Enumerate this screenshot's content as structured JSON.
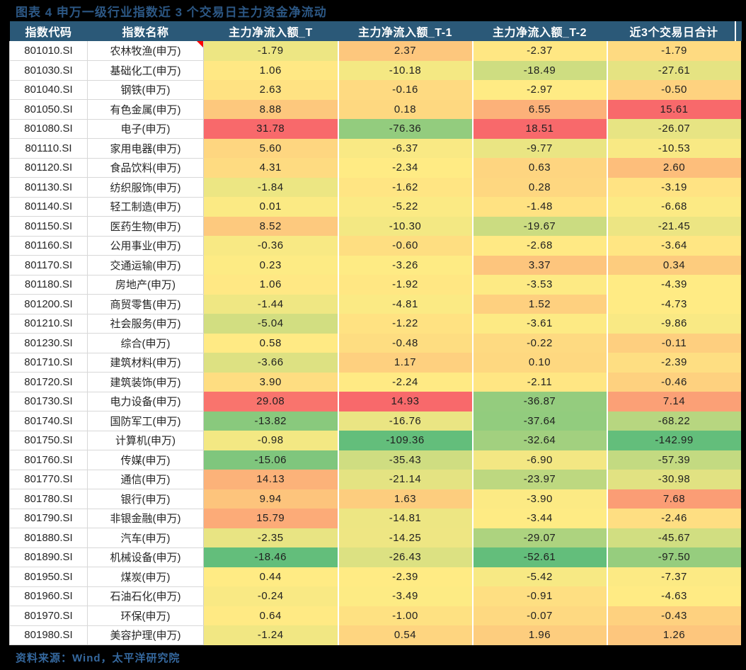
{
  "title": "图表 4 申万一级行业指数近 3 个交易日主力资金净流动",
  "source_note": "资料来源：Wind，太平洋研究院",
  "colors": {
    "page_bg": "#000000",
    "title_text": "#2C5784",
    "footer_text": "#35689E",
    "header_bg": "#2B5978",
    "header_text": "#FFFFFF",
    "scale_low_green": "#63BE7B",
    "scale_mid_yellow": "#FFEB84",
    "scale_high_red": "#F8696B",
    "comment_marker": "#FF0000"
  },
  "chart_data": {
    "type": "table",
    "title": "图表 4 申万一级行业指数近 3 个交易日主力资金净流动",
    "color_scale": "per-column 3-color scale: min=green #63BE7B, median=yellow #FFEB84, max=red #F8696B",
    "headers": [
      "指数代码",
      "指数名称",
      "主力净流入额_T",
      "主力净流入额_T-1",
      "主力净流入额_T-2",
      "近3个交易日合计"
    ]
  },
  "table": {
    "headers": [
      "指数代码",
      "指数名称",
      "主力净流入额_T",
      "主力净流入额_T-1",
      "主力净流入额_T-2",
      "近3个交易日合计"
    ],
    "rows": [
      {
        "code": "801010.SI",
        "name": "农林牧渔(申万)",
        "t": "-1.79",
        "t1": "2.37",
        "t2": "-2.37",
        "sum": "-1.79",
        "comment_marker": true
      },
      {
        "code": "801030.SI",
        "name": "基础化工(申万)",
        "t": "1.06",
        "t1": "-10.18",
        "t2": "-18.49",
        "sum": "-27.61"
      },
      {
        "code": "801040.SI",
        "name": "钢铁(申万)",
        "t": "2.63",
        "t1": "-0.16",
        "t2": "-2.97",
        "sum": "-0.50"
      },
      {
        "code": "801050.SI",
        "name": "有色金属(申万)",
        "t": "8.88",
        "t1": "0.18",
        "t2": "6.55",
        "sum": "15.61"
      },
      {
        "code": "801080.SI",
        "name": "电子(申万)",
        "t": "31.78",
        "t1": "-76.36",
        "t2": "18.51",
        "sum": "-26.07"
      },
      {
        "code": "801110.SI",
        "name": "家用电器(申万)",
        "t": "5.60",
        "t1": "-6.37",
        "t2": "-9.77",
        "sum": "-10.53"
      },
      {
        "code": "801120.SI",
        "name": "食品饮料(申万)",
        "t": "4.31",
        "t1": "-2.34",
        "t2": "0.63",
        "sum": "2.60"
      },
      {
        "code": "801130.SI",
        "name": "纺织服饰(申万)",
        "t": "-1.84",
        "t1": "-1.62",
        "t2": "0.28",
        "sum": "-3.19"
      },
      {
        "code": "801140.SI",
        "name": "轻工制造(申万)",
        "t": "0.01",
        "t1": "-5.22",
        "t2": "-1.48",
        "sum": "-6.68"
      },
      {
        "code": "801150.SI",
        "name": "医药生物(申万)",
        "t": "8.52",
        "t1": "-10.30",
        "t2": "-19.67",
        "sum": "-21.45"
      },
      {
        "code": "801160.SI",
        "name": "公用事业(申万)",
        "t": "-0.36",
        "t1": "-0.60",
        "t2": "-2.68",
        "sum": "-3.64"
      },
      {
        "code": "801170.SI",
        "name": "交通运输(申万)",
        "t": "0.23",
        "t1": "-3.26",
        "t2": "3.37",
        "sum": "0.34"
      },
      {
        "code": "801180.SI",
        "name": "房地产(申万)",
        "t": "1.06",
        "t1": "-1.92",
        "t2": "-3.53",
        "sum": "-4.39"
      },
      {
        "code": "801200.SI",
        "name": "商贸零售(申万)",
        "t": "-1.44",
        "t1": "-4.81",
        "t2": "1.52",
        "sum": "-4.73"
      },
      {
        "code": "801210.SI",
        "name": "社会服务(申万)",
        "t": "-5.04",
        "t1": "-1.22",
        "t2": "-3.61",
        "sum": "-9.86"
      },
      {
        "code": "801230.SI",
        "name": "综合(申万)",
        "t": "0.58",
        "t1": "-0.48",
        "t2": "-0.22",
        "sum": "-0.11"
      },
      {
        "code": "801710.SI",
        "name": "建筑材料(申万)",
        "t": "-3.66",
        "t1": "1.17",
        "t2": "0.10",
        "sum": "-2.39"
      },
      {
        "code": "801720.SI",
        "name": "建筑装饰(申万)",
        "t": "3.90",
        "t1": "-2.24",
        "t2": "-2.11",
        "sum": "-0.46"
      },
      {
        "code": "801730.SI",
        "name": "电力设备(申万)",
        "t": "29.08",
        "t1": "14.93",
        "t2": "-36.87",
        "sum": "7.14"
      },
      {
        "code": "801740.SI",
        "name": "国防军工(申万)",
        "t": "-13.82",
        "t1": "-16.76",
        "t2": "-37.64",
        "sum": "-68.22"
      },
      {
        "code": "801750.SI",
        "name": "计算机(申万)",
        "t": "-0.98",
        "t1": "-109.36",
        "t2": "-32.64",
        "sum": "-142.99"
      },
      {
        "code": "801760.SI",
        "name": "传媒(申万)",
        "t": "-15.06",
        "t1": "-35.43",
        "t2": "-6.90",
        "sum": "-57.39"
      },
      {
        "code": "801770.SI",
        "name": "通信(申万)",
        "t": "14.13",
        "t1": "-21.14",
        "t2": "-23.97",
        "sum": "-30.98"
      },
      {
        "code": "801780.SI",
        "name": "银行(申万)",
        "t": "9.94",
        "t1": "1.63",
        "t2": "-3.90",
        "sum": "7.68"
      },
      {
        "code": "801790.SI",
        "name": "非银金融(申万)",
        "t": "15.79",
        "t1": "-14.81",
        "t2": "-3.44",
        "sum": "-2.46"
      },
      {
        "code": "801880.SI",
        "name": "汽车(申万)",
        "t": "-2.35",
        "t1": "-14.25",
        "t2": "-29.07",
        "sum": "-45.67"
      },
      {
        "code": "801890.SI",
        "name": "机械设备(申万)",
        "t": "-18.46",
        "t1": "-26.43",
        "t2": "-52.61",
        "sum": "-97.50"
      },
      {
        "code": "801950.SI",
        "name": "煤炭(申万)",
        "t": "0.44",
        "t1": "-2.39",
        "t2": "-5.42",
        "sum": "-7.37"
      },
      {
        "code": "801960.SI",
        "name": "石油石化(申万)",
        "t": "-0.24",
        "t1": "-3.49",
        "t2": "-0.91",
        "sum": "-4.63"
      },
      {
        "code": "801970.SI",
        "name": "环保(申万)",
        "t": "0.64",
        "t1": "-1.00",
        "t2": "-0.07",
        "sum": "-0.43"
      },
      {
        "code": "801980.SI",
        "name": "美容护理(申万)",
        "t": "-1.24",
        "t1": "0.54",
        "t2": "1.96",
        "sum": "1.26"
      }
    ]
  }
}
